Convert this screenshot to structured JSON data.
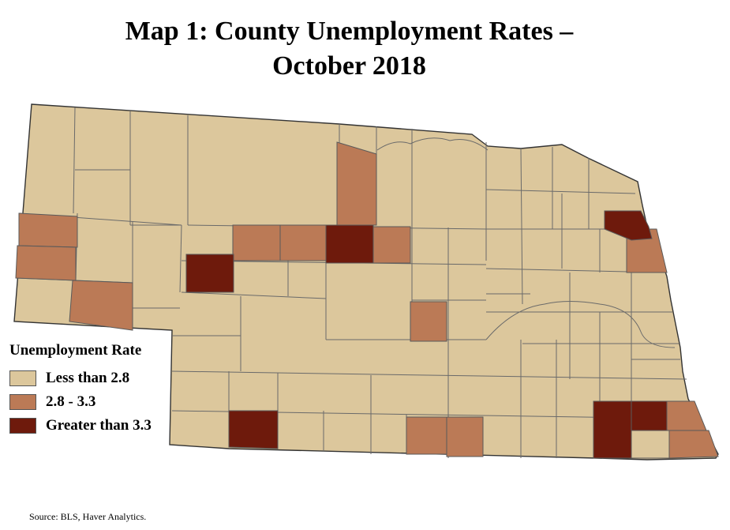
{
  "title": {
    "line1": "Map 1: County Unemployment Rates –",
    "line2": "October 2018"
  },
  "legend": {
    "title": "Unemployment Rate",
    "items": [
      {
        "label": "Less than 2.8",
        "color": "#dcc79c"
      },
      {
        "label": "2.8 - 3.3",
        "color": "#bb7a56"
      },
      {
        "label": "Greater than 3.3",
        "color": "#6e1a0c"
      }
    ]
  },
  "source": "Source: BLS, Haver Analytics.",
  "colors": {
    "low": "#dcc79c",
    "mid": "#bb7a56",
    "high": "#6e1a0c",
    "border": "#5a5a5a"
  }
}
